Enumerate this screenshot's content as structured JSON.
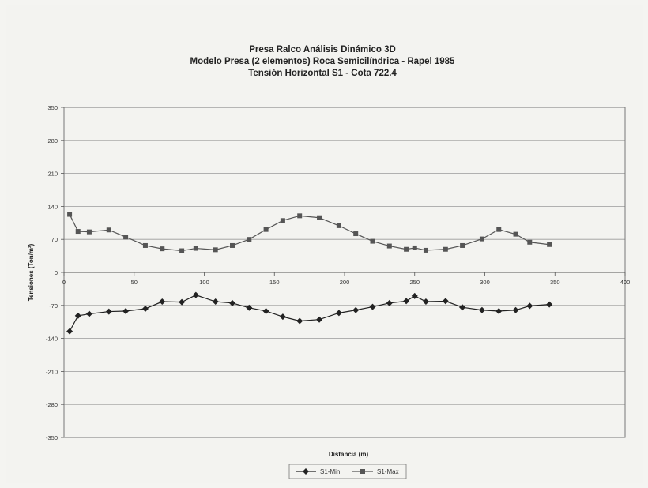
{
  "chart_data": {
    "type": "line",
    "title_lines": [
      "Presa Ralco Análisis Dinámico 3D",
      "Modelo Presa (2 elementos) Roca Semicilíndrica - Rapel 1985",
      "Tensión Horizontal S1 - Cota 722.4"
    ],
    "xlabel": "Distancia (m)",
    "ylabel": "Tensiones (Ton/m²)",
    "xlim": [
      0,
      400
    ],
    "ylim": [
      -350,
      350
    ],
    "xticks": [
      "0",
      "50",
      "100",
      "150",
      "200",
      "250",
      "300",
      "350",
      "400"
    ],
    "yticks": [
      "350",
      "280",
      "210",
      "140",
      "70",
      "0",
      "-70",
      "-140",
      "-210",
      "-280",
      "-350"
    ],
    "grid": "horizontal",
    "legend": "bottom-center",
    "series": [
      {
        "name": "S1-Min",
        "color": "#222222",
        "marker": "diamond",
        "points": [
          [
            4,
            -125
          ],
          [
            10,
            -92
          ],
          [
            18,
            -88
          ],
          [
            32,
            -83
          ],
          [
            44,
            -82
          ],
          [
            58,
            -77
          ],
          [
            70,
            -62
          ],
          [
            84,
            -63
          ],
          [
            94,
            -48
          ],
          [
            108,
            -62
          ],
          [
            120,
            -65
          ],
          [
            132,
            -75
          ],
          [
            144,
            -82
          ],
          [
            156,
            -94
          ],
          [
            168,
            -103
          ],
          [
            182,
            -100
          ],
          [
            196,
            -86
          ],
          [
            208,
            -80
          ],
          [
            220,
            -73
          ],
          [
            232,
            -65
          ],
          [
            244,
            -61
          ],
          [
            250,
            -50
          ],
          [
            258,
            -62
          ],
          [
            272,
            -61
          ],
          [
            284,
            -74
          ],
          [
            298,
            -80
          ],
          [
            310,
            -82
          ],
          [
            322,
            -80
          ],
          [
            332,
            -71
          ],
          [
            346,
            -68
          ]
        ]
      },
      {
        "name": "S1-Max",
        "color": "#555555",
        "marker": "square",
        "points": [
          [
            4,
            123
          ],
          [
            10,
            87
          ],
          [
            18,
            86
          ],
          [
            32,
            90
          ],
          [
            44,
            75
          ],
          [
            58,
            57
          ],
          [
            70,
            50
          ],
          [
            84,
            46
          ],
          [
            94,
            51
          ],
          [
            108,
            48
          ],
          [
            120,
            57
          ],
          [
            132,
            70
          ],
          [
            144,
            91
          ],
          [
            156,
            110
          ],
          [
            168,
            120
          ],
          [
            182,
            116
          ],
          [
            196,
            99
          ],
          [
            208,
            82
          ],
          [
            220,
            66
          ],
          [
            232,
            56
          ],
          [
            244,
            49
          ],
          [
            250,
            52
          ],
          [
            258,
            47
          ],
          [
            272,
            49
          ],
          [
            284,
            57
          ],
          [
            298,
            71
          ],
          [
            310,
            91
          ],
          [
            322,
            81
          ],
          [
            332,
            64
          ],
          [
            346,
            59
          ]
        ]
      }
    ]
  }
}
